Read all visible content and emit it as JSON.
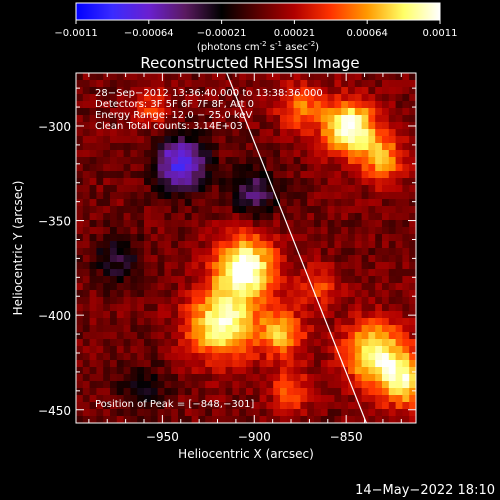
{
  "colorbar": {
    "ticks": [
      "-0.0011",
      "-0.00064",
      "-0.00021",
      "0.00021",
      "0.00064",
      "0.0011"
    ],
    "unit_parts": {
      "a": "(photons cm",
      "a_exp": "-2",
      "b": " s",
      "b_exp": "-1",
      "c": " asec",
      "c_exp": "-2",
      "d": ")"
    },
    "colors": [
      "#0000ff",
      "#3a2bff",
      "#6a20d0",
      "#5a1a60",
      "#000000",
      "#5a0000",
      "#b00000",
      "#ff3300",
      "#ff9900",
      "#ffff66",
      "#ffffff"
    ]
  },
  "chart_data": {
    "type": "heatmap",
    "title": "Reconstructed RHESSI Image",
    "xlabel": "Heliocentric X (arcsec)",
    "ylabel": "Heliocentric Y (arcsec)",
    "xlim": [
      -997,
      -812
    ],
    "ylim": [
      -457,
      -272
    ],
    "x_ticks": [
      -950,
      -900,
      -850
    ],
    "x_tick_labels": [
      "−950",
      "−900",
      "−850"
    ],
    "y_ticks": [
      -300,
      -350,
      -400,
      -450
    ],
    "y_tick_labels": [
      "−300",
      "−350",
      "−400",
      "−450"
    ],
    "info_lines": [
      "28−Sep−2012 13:36:40.000 to 13:38:36.000",
      "Detectors: 3F 5F 6F 7F 8F, Att 0",
      "Energy Range: 12.0 − 25.0 keV",
      "Clean    Total counts: 3.14E+03"
    ],
    "peak_label": "Position of Peak = [−848,−301]",
    "peak": {
      "x": -848,
      "y": -301
    },
    "limb_line": [
      {
        "x": -915,
        "y": -272
      },
      {
        "x": -839,
        "y": -457
      }
    ],
    "sources": [
      {
        "x": -848,
        "y": -301,
        "amp": 1.0,
        "sigma": 10
      },
      {
        "x": -830,
        "y": -318,
        "amp": 0.55,
        "sigma": 9
      },
      {
        "x": -905,
        "y": -375,
        "amp": 0.95,
        "sigma": 12
      },
      {
        "x": -918,
        "y": -405,
        "amp": 0.85,
        "sigma": 13
      },
      {
        "x": -885,
        "y": -410,
        "amp": 0.6,
        "sigma": 9
      },
      {
        "x": -880,
        "y": -440,
        "amp": 0.4,
        "sigma": 8
      },
      {
        "x": -835,
        "y": -420,
        "amp": 0.8,
        "sigma": 12
      },
      {
        "x": -818,
        "y": -435,
        "amp": 0.7,
        "sigma": 10
      },
      {
        "x": -865,
        "y": -385,
        "amp": 0.35,
        "sigma": 8
      },
      {
        "x": -875,
        "y": -290,
        "amp": 0.45,
        "sigma": 9
      },
      {
        "x": -955,
        "y": -290,
        "amp": 0.35,
        "sigma": 7
      },
      {
        "x": -940,
        "y": -320,
        "amp": -0.8,
        "sigma": 10
      },
      {
        "x": -900,
        "y": -335,
        "amp": -0.45,
        "sigma": 9
      },
      {
        "x": -975,
        "y": -370,
        "amp": -0.35,
        "sigma": 9
      },
      {
        "x": -960,
        "y": -440,
        "amp": -0.3,
        "sigma": 9
      }
    ],
    "color_range": [
      -0.0011,
      0.0011
    ]
  },
  "footer": {
    "timestamp": "14−May−2022 18:10"
  }
}
